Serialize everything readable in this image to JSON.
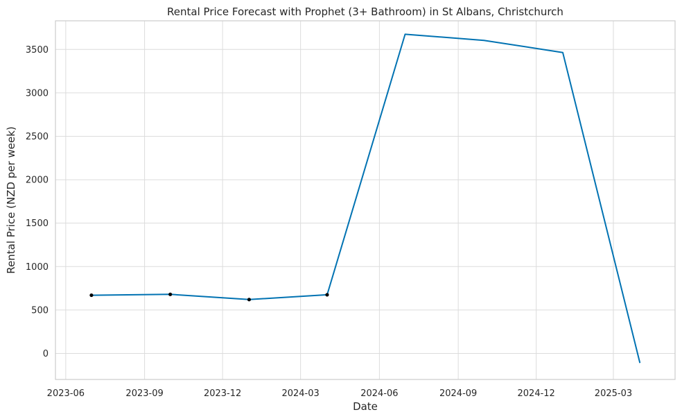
{
  "chart_data": {
    "type": "line",
    "title": "Rental Price Forecast with Prophet (3+ Bathroom) in St Albans, Christchurch",
    "xlabel": "Date",
    "ylabel": "Rental Price (NZD per week)",
    "x_ticks": [
      "2023-06",
      "2023-09",
      "2023-12",
      "2024-03",
      "2024-06",
      "2024-09",
      "2024-12",
      "2025-03"
    ],
    "y_ticks": [
      0,
      500,
      1000,
      1500,
      2000,
      2500,
      3000,
      3500
    ],
    "xlim": [
      "2023-05-20",
      "2025-05-12"
    ],
    "ylim": [
      -300,
      3830
    ],
    "grid": true,
    "series": [
      {
        "color": "#0072b2",
        "x": [
          "2023-07-01",
          "2023-10-01",
          "2024-01-01",
          "2024-04-01",
          "2024-07-01",
          "2024-10-01",
          "2025-01-01",
          "2025-04-01"
        ],
        "y": [
          670,
          680,
          620,
          675,
          3675,
          3605,
          3465,
          -110
        ]
      }
    ],
    "observed_points": {
      "color": "#000000",
      "x": [
        "2023-07-01",
        "2023-10-01",
        "2024-01-01",
        "2024-04-01"
      ],
      "y": [
        670,
        680,
        620,
        675
      ]
    }
  }
}
